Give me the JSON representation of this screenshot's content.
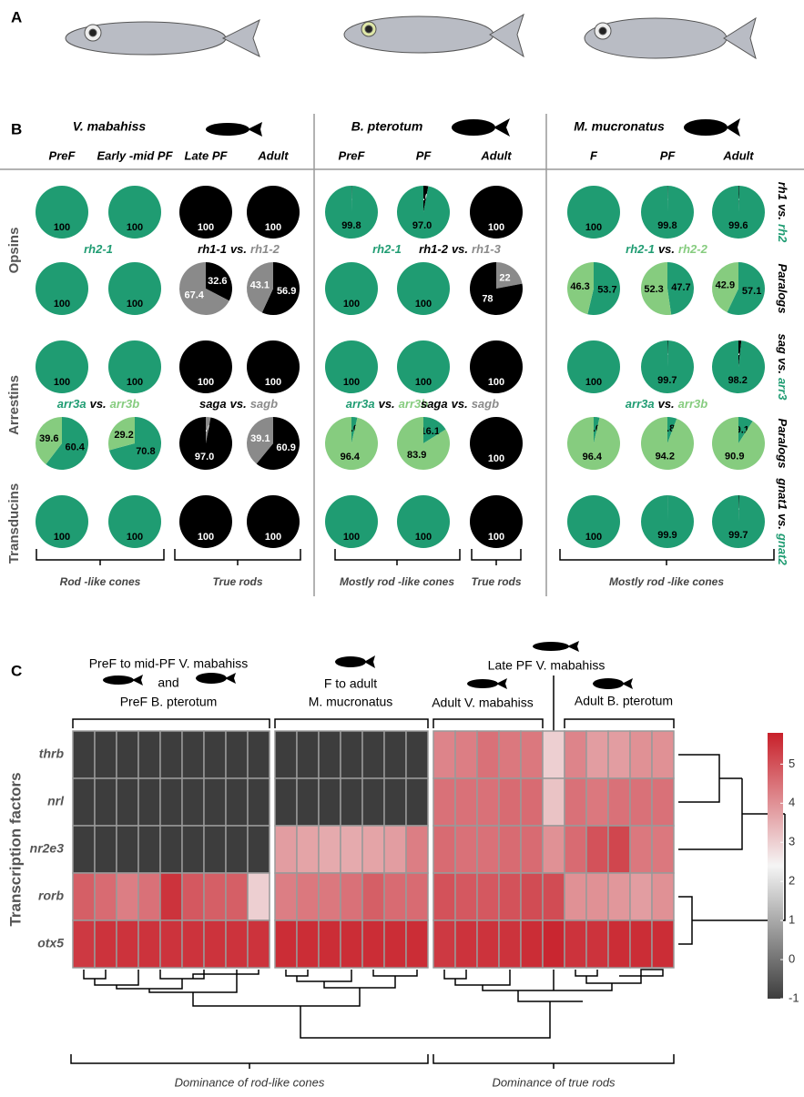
{
  "panel_labels": {
    "a": "A",
    "b": "B",
    "c": "C"
  },
  "panel_b": {
    "species": [
      {
        "name": "V. mabahiss",
        "stages": [
          "PreF",
          "Early -mid PF",
          "Late PF",
          "Adult"
        ]
      },
      {
        "name": "B. pterotum",
        "stages": [
          "PreF",
          "PF",
          "Adult"
        ]
      },
      {
        "name": "M. mucronatus",
        "stages": [
          "F",
          "PF",
          "Adult"
        ]
      }
    ],
    "row_groups": [
      "Opsins",
      "Arrestins",
      "Transducins"
    ],
    "row_labels": [
      [
        {
          "text": "rh1",
          "color": "#000000"
        },
        {
          "text": "vs.",
          "color": "#000000"
        },
        {
          "text": "rh2",
          "color": "#1f9c72"
        }
      ],
      [
        {
          "text": "Paralogs",
          "color": "#000000"
        }
      ],
      [
        {
          "text": "sag",
          "color": "#000000"
        },
        {
          "text": "vs.",
          "color": "#000000"
        },
        {
          "text": "arr3",
          "color": "#1f9c72"
        }
      ],
      [
        {
          "text": "Paralogs",
          "color": "#000000"
        }
      ],
      [
        {
          "text": "gnat1",
          "color": "#000000"
        },
        {
          "text": "vs.",
          "color": "#000000"
        },
        {
          "text": "gnat2",
          "color": "#1f9c72"
        }
      ]
    ],
    "paralog_labels": [
      [
        [
          {
            "text": "rh2-1",
            "color": "#1f9c72"
          }
        ],
        [
          {
            "text": "rh1-1",
            "color": "#000000"
          },
          {
            "text": "vs.",
            "color": "#000000"
          },
          {
            "text": "rh1-2",
            "color": "#8a8a8a"
          }
        ],
        [
          {
            "text": "rh2-1",
            "color": "#1f9c72"
          }
        ],
        [
          {
            "text": "rh1-2",
            "color": "#000000"
          },
          {
            "text": "vs.",
            "color": "#000000"
          },
          {
            "text": "rh1-3",
            "color": "#8a8a8a"
          }
        ],
        [
          {
            "text": "rh2-1",
            "color": "#1f9c72"
          },
          {
            "text": "vs.",
            "color": "#000000"
          },
          {
            "text": "rh2-2",
            "color": "#86cc7f"
          }
        ]
      ],
      [
        [
          {
            "text": "arr3a",
            "color": "#1f9c72"
          },
          {
            "text": "vs.",
            "color": "#000000"
          },
          {
            "text": "arr3b",
            "color": "#86cc7f"
          }
        ],
        [
          {
            "text": "saga",
            "color": "#000000"
          },
          {
            "text": "vs.",
            "color": "#000000"
          },
          {
            "text": "sagb",
            "color": "#8a8a8a"
          }
        ],
        [
          {
            "text": "arr3a",
            "color": "#1f9c72"
          },
          {
            "text": "vs.",
            "color": "#000000"
          },
          {
            "text": "arr3b",
            "color": "#86cc7f"
          }
        ],
        [
          {
            "text": "saga",
            "color": "#000000"
          },
          {
            "text": "vs.",
            "color": "#000000"
          },
          {
            "text": "sagb",
            "color": "#8a8a8a"
          }
        ],
        [
          {
            "text": "arr3a",
            "color": "#1f9c72"
          },
          {
            "text": "vs.",
            "color": "#000000"
          },
          {
            "text": "arr3b",
            "color": "#86cc7f"
          }
        ]
      ]
    ],
    "pies": [
      [
        [
          {
            "value": 100,
            "color": "#1f9c72"
          }
        ],
        [
          {
            "value": 100,
            "color": "#1f9c72"
          }
        ],
        [
          {
            "value": 100,
            "color": "#000000"
          }
        ],
        [
          {
            "value": 100,
            "color": "#000000"
          }
        ],
        [
          {
            "value": 0.2,
            "color": "#000000"
          },
          {
            "value": 99.8,
            "color": "#1f9c72"
          }
        ],
        [
          {
            "value": 3,
            "label": "3.0",
            "color": "#000000"
          },
          {
            "value": 97,
            "label": "97.0",
            "color": "#1f9c72"
          }
        ],
        [
          {
            "value": 100,
            "color": "#000000"
          }
        ],
        [
          {
            "value": 100,
            "color": "#1f9c72"
          }
        ],
        [
          {
            "value": 0.2,
            "color": "#000000"
          },
          {
            "value": 99.8,
            "color": "#1f9c72"
          }
        ],
        [
          {
            "value": 0.4,
            "color": "#000000"
          },
          {
            "value": 99.6,
            "color": "#1f9c72"
          }
        ]
      ],
      [
        [
          {
            "value": 100,
            "color": "#1f9c72"
          }
        ],
        [
          {
            "value": 100,
            "color": "#1f9c72"
          }
        ],
        [
          {
            "value": 32.6,
            "color": "#000000"
          },
          {
            "value": 67.4,
            "color": "#8a8a8a"
          }
        ],
        [
          {
            "value": 56.9,
            "color": "#000000"
          },
          {
            "value": 43.1,
            "color": "#8a8a8a"
          }
        ],
        [
          {
            "value": 100,
            "color": "#1f9c72"
          }
        ],
        [
          {
            "value": 100,
            "color": "#1f9c72"
          }
        ],
        [
          {
            "value": 22,
            "color": "#8a8a8a"
          },
          {
            "value": 78,
            "color": "#000000"
          }
        ],
        [
          {
            "value": 53.7,
            "color": "#1f9c72"
          },
          {
            "value": 46.3,
            "color": "#86cc7f"
          }
        ],
        [
          {
            "value": 47.7,
            "color": "#1f9c72"
          },
          {
            "value": 52.3,
            "color": "#86cc7f"
          }
        ],
        [
          {
            "value": 57.1,
            "color": "#1f9c72"
          },
          {
            "value": 42.9,
            "color": "#86cc7f"
          }
        ]
      ],
      [
        [
          {
            "value": 100,
            "color": "#1f9c72"
          }
        ],
        [
          {
            "value": 100,
            "color": "#1f9c72"
          }
        ],
        [
          {
            "value": 100,
            "color": "#000000"
          }
        ],
        [
          {
            "value": 100,
            "color": "#000000"
          }
        ],
        [
          {
            "value": 100,
            "color": "#1f9c72"
          }
        ],
        [
          {
            "value": 100,
            "color": "#1f9c72"
          }
        ],
        [
          {
            "value": 100,
            "color": "#000000"
          }
        ],
        [
          {
            "value": 100,
            "color": "#1f9c72"
          }
        ],
        [
          {
            "value": 0.3,
            "color": "#000000"
          },
          {
            "value": 99.7,
            "color": "#1f9c72"
          }
        ],
        [
          {
            "value": 1.8,
            "color": "#000000"
          },
          {
            "value": 98.2,
            "color": "#1f9c72"
          }
        ]
      ],
      [
        [
          {
            "value": 60.4,
            "color": "#1f9c72"
          },
          {
            "value": 39.6,
            "color": "#86cc7f"
          }
        ],
        [
          {
            "value": 70.8,
            "color": "#1f9c72"
          },
          {
            "value": 29.2,
            "color": "#86cc7f"
          }
        ],
        [
          {
            "value": 3,
            "label": "3.0",
            "color": "#8a8a8a"
          },
          {
            "value": 97,
            "label": "97.0",
            "color": "#000000"
          }
        ],
        [
          {
            "value": 60.9,
            "color": "#000000"
          },
          {
            "value": 39.1,
            "color": "#8a8a8a"
          }
        ],
        [
          {
            "value": 3.6,
            "color": "#1f9c72"
          },
          {
            "value": 96.4,
            "color": "#86cc7f"
          }
        ],
        [
          {
            "value": 16.1,
            "color": "#1f9c72"
          },
          {
            "value": 83.9,
            "color": "#86cc7f"
          }
        ],
        [
          {
            "value": 100,
            "color": "#000000"
          }
        ],
        [
          {
            "value": 3.6,
            "color": "#1f9c72"
          },
          {
            "value": 96.4,
            "color": "#86cc7f"
          }
        ],
        [
          {
            "value": 5.8,
            "color": "#1f9c72"
          },
          {
            "value": 94.2,
            "color": "#86cc7f"
          }
        ],
        [
          {
            "value": 9.1,
            "color": "#1f9c72"
          },
          {
            "value": 90.9,
            "color": "#86cc7f"
          }
        ]
      ],
      [
        [
          {
            "value": 100,
            "color": "#1f9c72"
          }
        ],
        [
          {
            "value": 100,
            "color": "#1f9c72"
          }
        ],
        [
          {
            "value": 100,
            "color": "#000000"
          }
        ],
        [
          {
            "value": 100,
            "color": "#000000"
          }
        ],
        [
          {
            "value": 100,
            "color": "#1f9c72"
          }
        ],
        [
          {
            "value": 100,
            "color": "#1f9c72"
          }
        ],
        [
          {
            "value": 100,
            "color": "#000000"
          }
        ],
        [
          {
            "value": 100,
            "color": "#1f9c72"
          }
        ],
        [
          {
            "value": 0.1,
            "color": "#000000"
          },
          {
            "value": 99.9,
            "color": "#1f9c72"
          }
        ],
        [
          {
            "value": 0.3,
            "color": "#000000"
          },
          {
            "value": 99.7,
            "color": "#1f9c72"
          }
        ]
      ]
    ],
    "brackets": [
      "Rod -like cones",
      "True rods",
      "Mostly rod -like cones",
      "True rods",
      "Mostly rod -like cones"
    ]
  },
  "panel_c": {
    "annotations": [
      "PreF to mid-PF V. mabahiss",
      "and",
      "PreF B. pterotum",
      "F to adult",
      "M. mucronatus",
      "Late PF V. mabahiss",
      "Adult V. mabahiss",
      "Adult B. pterotum"
    ],
    "ylabel": "Transcription factors",
    "rows": [
      "thrb",
      "nrl",
      "nr2e3",
      "rorb",
      "otx5"
    ],
    "groups": [
      {
        "values": [
          [
            -1,
            -1,
            -1,
            -1,
            -1,
            -1,
            -1,
            -1,
            -1
          ],
          [
            -1,
            -1,
            -1,
            -1,
            -1,
            -1,
            -1,
            -1,
            -1
          ],
          [
            -1,
            -1,
            -1,
            -1,
            -1,
            -1,
            -1,
            -1,
            -1
          ],
          [
            4.8,
            4.6,
            4.3,
            4.5,
            5.5,
            4.9,
            4.8,
            4.8,
            3.0
          ],
          [
            5.4,
            5.5,
            5.5,
            5.5,
            5.5,
            5.5,
            5.5,
            5.5,
            5.5
          ]
        ]
      },
      {
        "values": [
          [
            -1,
            -1,
            -1,
            -1,
            -1,
            -1,
            -1
          ],
          [
            -1,
            -1,
            -1,
            -1,
            -1,
            -1,
            -1
          ],
          [
            3.8,
            3.7,
            3.6,
            3.6,
            3.7,
            3.8,
            4.3
          ],
          [
            4.3,
            4.4,
            4.4,
            4.5,
            4.8,
            4.6,
            4.6
          ],
          [
            5.6,
            5.6,
            5.6,
            5.6,
            5.6,
            5.6,
            5.6
          ]
        ]
      },
      {
        "values": [
          [
            4.2,
            4.3,
            4.5,
            4.4,
            4.4,
            3.0,
            4.2,
            3.8,
            3.8,
            4.0,
            4.0
          ],
          [
            4.5,
            4.5,
            4.5,
            4.6,
            4.6,
            3.2,
            4.5,
            4.4,
            4.5,
            4.5,
            4.5
          ],
          [
            4.6,
            4.5,
            4.5,
            4.6,
            4.6,
            4.0,
            4.6,
            5.0,
            5.2,
            4.4,
            4.4
          ],
          [
            5.0,
            4.9,
            4.9,
            5.0,
            5.1,
            5.1,
            4.0,
            4.0,
            3.9,
            3.8,
            4.0
          ],
          [
            5.4,
            5.5,
            5.5,
            5.5,
            5.6,
            5.7,
            5.5,
            5.5,
            5.6,
            5.6,
            5.6
          ]
        ]
      }
    ],
    "clim": [
      -1,
      5.8
    ],
    "cticks": [
      -1,
      0,
      1,
      2,
      3,
      4,
      5
    ],
    "colormap": [
      "#3d3d3d",
      "#f5f5f5",
      "#c8202a"
    ],
    "bottom_labels": [
      "Dominance of rod-like cones",
      "Dominance of true rods"
    ]
  }
}
